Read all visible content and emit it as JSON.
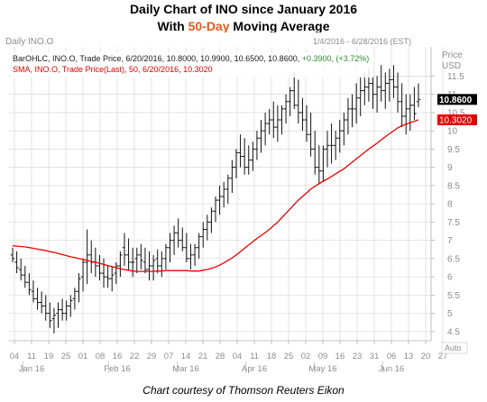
{
  "chart_data": {
    "type": "ohlc",
    "title_line1": "Daily Chart of INO since January 2016",
    "title_line2_prefix": "With ",
    "title_line2_highlight": "50-Day",
    "title_line2_suffix": " Moving Average",
    "panel_label": "Daily INO.O",
    "date_range": "1/4/2016 - 6/28/2016 (EST)",
    "price_label": "Price",
    "currency_label": "USD",
    "auto_label": "Auto",
    "legend": {
      "bar_prefix": "BarOHLC, INO.O, Trade Price, 6/20/2016, 10.8000, 10.9900, 10.6500, 10.8600,",
      "bar_change": "+0.3900, (+3.72%)",
      "sma": "SMA, INO.O, Trade Price(Last),  50, 6/20/2016, 10.3020"
    },
    "last_price_label": "10.8600",
    "sma_value_label": "10.3020",
    "last_price": 10.86,
    "sma_last": 10.302,
    "ylim": [
      4.25,
      12.3
    ],
    "y_ticks": [
      4.5,
      5,
      5.5,
      6,
      6.5,
      7,
      7.5,
      8,
      8.5,
      9,
      9.5,
      10,
      10.5,
      11,
      11.5
    ],
    "x_day_ticks": [
      "04",
      "11",
      "19",
      "25",
      "01",
      "08",
      "16",
      "22",
      "29",
      "07",
      "14",
      "21",
      "28",
      "04",
      "11",
      "18",
      "25",
      "02",
      "09",
      "16",
      "23",
      "31",
      "06",
      "13",
      "20",
      "27"
    ],
    "x_months": [
      "Jan 16",
      "Feb 16",
      "Mar 16",
      "Apr 16",
      "May 16",
      "Jun 16"
    ],
    "colors": {
      "bars": "#111111",
      "sma": "#e60000",
      "title_highlight": "#e8581f",
      "change_positive": "#2e8b2e",
      "last_price_box": "#000000",
      "sma_box": "#e60000"
    },
    "bars_open": [
      6.6,
      6.4,
      6.2,
      6.05,
      5.85,
      5.6,
      5.4,
      5.3,
      5.2,
      5.0,
      4.85,
      5.0,
      5.1,
      5.0,
      5.2,
      5.4,
      5.6,
      6.0,
      6.4,
      6.6,
      6.4,
      6.3,
      6.1,
      6.0,
      5.95,
      6.1,
      6.3,
      6.8,
      6.6,
      6.4,
      6.5,
      6.6,
      6.4,
      6.2,
      6.3,
      6.5,
      6.3,
      6.5,
      6.8,
      7.0,
      7.2,
      7.0,
      6.8,
      6.5,
      6.6,
      6.8,
      7.1,
      7.3,
      7.5,
      7.8,
      8.1,
      8.2,
      8.4,
      8.7,
      9.0,
      9.4,
      9.3,
      9.0,
      9.2,
      9.5,
      9.8,
      10.0,
      10.2,
      10.3,
      10.1,
      10.3,
      10.6,
      10.8,
      11.1,
      10.7,
      10.5,
      10.3,
      9.9,
      9.5,
      9.0,
      8.9,
      9.5,
      9.6,
      9.6,
      9.8,
      10.0,
      10.3,
      10.6,
      10.6,
      10.9,
      11.1,
      11.2,
      11.3,
      11.0,
      11.2,
      11.1,
      11.3,
      11.4,
      11.2,
      10.8,
      10.4,
      10.6,
      10.7,
      10.8
    ],
    "bars_high": [
      6.8,
      6.7,
      6.5,
      6.3,
      6.1,
      5.9,
      5.7,
      5.6,
      5.5,
      5.3,
      5.15,
      5.3,
      5.4,
      5.35,
      5.5,
      5.7,
      6.1,
      6.5,
      7.3,
      7.0,
      6.8,
      6.6,
      6.5,
      6.3,
      6.3,
      6.4,
      6.7,
      7.2,
      7.05,
      6.8,
      6.8,
      6.9,
      6.8,
      6.7,
      6.6,
      6.75,
      6.7,
      6.9,
      7.2,
      7.4,
      7.6,
      7.35,
      7.2,
      6.9,
      6.9,
      7.2,
      7.5,
      7.7,
      7.9,
      8.2,
      8.5,
      8.6,
      8.8,
      9.2,
      9.5,
      9.9,
      9.8,
      9.6,
      9.7,
      10.0,
      10.3,
      10.5,
      10.6,
      10.8,
      10.7,
      10.7,
      11.0,
      11.2,
      11.6,
      11.4,
      10.9,
      10.7,
      10.5,
      10.0,
      9.6,
      9.6,
      10.0,
      10.2,
      10.0,
      10.3,
      10.5,
      10.9,
      11.0,
      11.3,
      11.5,
      11.6,
      11.7,
      11.5,
      11.5,
      11.8,
      11.6,
      11.7,
      11.8,
      11.6,
      11.3,
      11.0,
      11.0,
      11.2,
      11.3
    ],
    "bars_low": [
      6.4,
      6.1,
      5.9,
      5.7,
      5.5,
      5.3,
      5.1,
      5.0,
      4.8,
      4.6,
      4.45,
      4.6,
      4.8,
      4.8,
      4.9,
      5.1,
      5.3,
      5.6,
      5.8,
      6.1,
      6.0,
      5.9,
      5.7,
      5.7,
      5.6,
      5.8,
      6.0,
      6.3,
      6.2,
      6.0,
      6.1,
      6.2,
      6.1,
      5.9,
      5.9,
      6.1,
      6.0,
      6.2,
      6.4,
      6.6,
      6.8,
      6.7,
      6.4,
      6.2,
      6.3,
      6.5,
      6.8,
      7.0,
      7.2,
      7.5,
      7.7,
      7.9,
      8.0,
      8.3,
      8.7,
      9.0,
      8.8,
      8.8,
      8.9,
      9.2,
      9.4,
      9.6,
      9.9,
      9.8,
      9.7,
      9.9,
      10.2,
      10.4,
      10.6,
      10.2,
      10.0,
      9.7,
      9.3,
      8.8,
      8.55,
      8.6,
      9.0,
      9.1,
      9.2,
      9.4,
      9.6,
      9.9,
      10.1,
      10.2,
      10.4,
      10.7,
      10.8,
      10.6,
      10.5,
      10.8,
      10.6,
      10.8,
      10.9,
      10.5,
      10.1,
      9.9,
      10.0,
      10.3,
      10.65
    ],
    "bars_close": [
      6.5,
      6.25,
      6.05,
      5.85,
      5.65,
      5.4,
      5.3,
      5.2,
      5.0,
      4.8,
      4.95,
      5.1,
      5.0,
      5.2,
      5.35,
      5.6,
      5.95,
      6.4,
      6.6,
      6.4,
      6.3,
      6.1,
      6.0,
      5.95,
      6.05,
      6.3,
      6.6,
      6.6,
      6.4,
      6.4,
      6.6,
      6.45,
      6.2,
      6.3,
      6.45,
      6.3,
      6.5,
      6.8,
      7.0,
      7.2,
      7.0,
      6.8,
      6.5,
      6.6,
      6.8,
      7.1,
      7.3,
      7.5,
      7.8,
      8.1,
      8.2,
      8.4,
      8.7,
      9.0,
      9.4,
      9.3,
      9.0,
      9.2,
      9.5,
      9.8,
      10.0,
      10.2,
      10.3,
      10.1,
      10.3,
      10.6,
      10.8,
      11.1,
      10.7,
      10.5,
      10.3,
      9.9,
      9.5,
      9.0,
      8.9,
      9.5,
      9.6,
      9.6,
      9.8,
      10.0,
      10.3,
      10.6,
      10.6,
      10.9,
      11.1,
      11.2,
      11.3,
      11.0,
      11.2,
      11.1,
      11.3,
      11.4,
      11.2,
      10.8,
      10.4,
      10.6,
      10.7,
      10.47,
      10.86
    ],
    "sma_values": [
      6.85,
      6.84,
      6.83,
      6.82,
      6.8,
      6.78,
      6.76,
      6.74,
      6.72,
      6.69,
      6.67,
      6.64,
      6.61,
      6.58,
      6.55,
      6.53,
      6.5,
      6.48,
      6.45,
      6.42,
      6.4,
      6.37,
      6.34,
      6.31,
      6.28,
      6.25,
      6.22,
      6.2,
      6.18,
      6.16,
      6.15,
      6.15,
      6.15,
      6.15,
      6.15,
      6.16,
      6.16,
      6.17,
      6.17,
      6.17,
      6.17,
      6.17,
      6.17,
      6.16,
      6.16,
      6.16,
      6.18,
      6.2,
      6.23,
      6.27,
      6.32,
      6.38,
      6.45,
      6.52,
      6.6,
      6.69,
      6.78,
      6.87,
      6.96,
      7.05,
      7.13,
      7.21,
      7.3,
      7.4,
      7.5,
      7.62,
      7.74,
      7.86,
      7.98,
      8.1,
      8.2,
      8.3,
      8.4,
      8.48,
      8.55,
      8.62,
      8.68,
      8.75,
      8.82,
      8.89,
      8.96,
      9.05,
      9.14,
      9.23,
      9.32,
      9.41,
      9.5,
      9.58,
      9.66,
      9.75,
      9.84,
      9.92,
      10.0,
      10.08,
      10.14,
      10.18,
      10.22,
      10.26,
      10.302
    ]
  },
  "footer": "Chart courtesy of Thomson Reuters Eikon"
}
